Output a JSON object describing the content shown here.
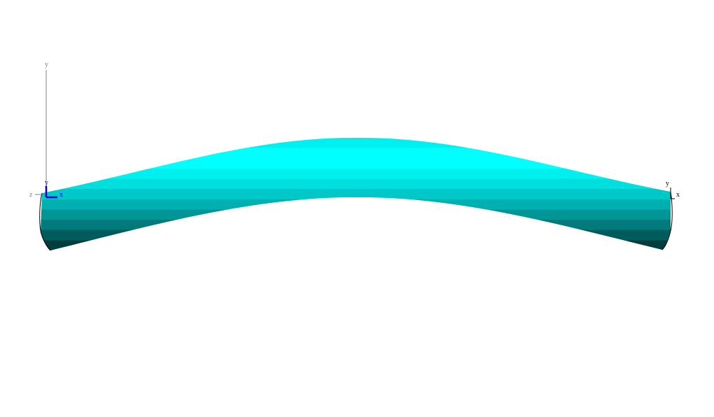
{
  "scene": {
    "background_color": "#ffffff",
    "pipe_color": "#00ffff",
    "pipe_shade_colors": [
      "#00ffff",
      "#00f0f0",
      "#00dede",
      "#00c8c8",
      "#00b0b0",
      "#009696",
      "#007a7a",
      "#005c5c",
      "#003e3e"
    ],
    "outline_color": "#000000"
  },
  "global_axes": {
    "icon": "global-coordinate-triad",
    "y_label": "y",
    "x_label": "x",
    "z_label": "z",
    "y_axis_color": "#808080",
    "z_axis_color": "#808080",
    "triad_color": "#0000cc"
  },
  "local_axes_start": {
    "y_label": "y",
    "x_label": "x",
    "color": "#0000cc"
  },
  "local_axes_end": {
    "y_label": "y",
    "x_label": "x",
    "color": "#000000"
  }
}
